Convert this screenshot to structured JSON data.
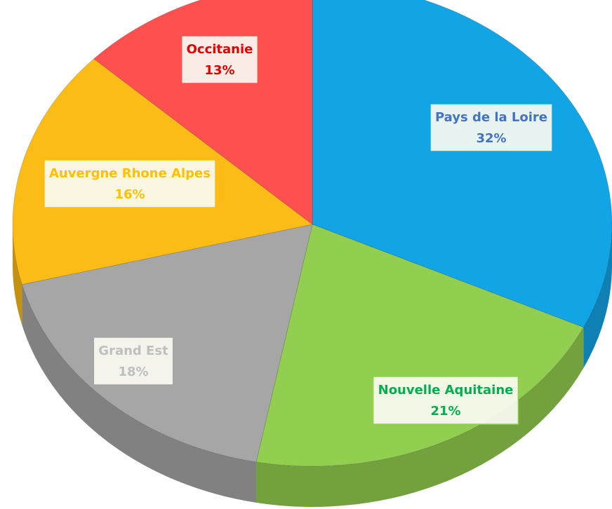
{
  "chart_data": {
    "type": "pie",
    "categories": [
      "Pays de la Loire",
      "Nouvelle Aquitaine",
      "Grand Est",
      "Auvergne Rhone Alpes",
      "Occitanie"
    ],
    "values": [
      32,
      21,
      18,
      16,
      13
    ],
    "value_labels": [
      "32%",
      "21%",
      "18%",
      "16%",
      "13%"
    ],
    "colors": [
      "#12a5e6",
      "#92cf50",
      "#a6a6a6",
      "#fbbc16",
      "#ff5050"
    ],
    "label_colors": [
      "#4472c4",
      "#00b050",
      "#bfbfbf",
      "#ffc000",
      "#e00000"
    ]
  }
}
